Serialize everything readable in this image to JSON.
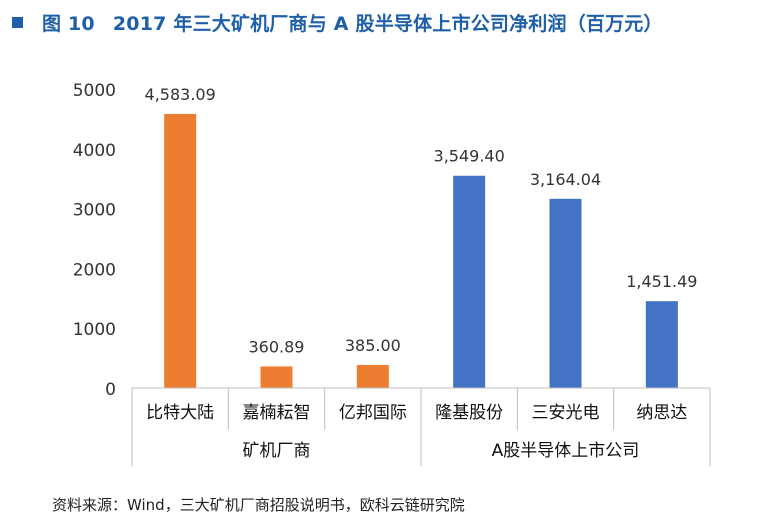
{
  "figure": {
    "label": "图 10",
    "title": "2017 年三大矿机厂商与 A 股半导体上市公司净利润（百万元）"
  },
  "source": "资料来源：Wind，三大矿机厂商招股说明书，欧科云链研究院",
  "colors": {
    "title": "#1f5fa8",
    "miner": "#ed7d31",
    "semiconductor": "#4472c4",
    "axis": "#bfbfbf",
    "text": "#333333"
  },
  "chart_data": {
    "type": "bar",
    "title": "2017 年三大矿机厂商与 A 股半导体上市公司净利润（百万元）",
    "ylabel": "百万元",
    "xlabel": "",
    "ylim": [
      0,
      5000
    ],
    "yticks": [
      0,
      1000,
      2000,
      3000,
      4000,
      5000
    ],
    "grid": false,
    "categories": [
      "比特大陆",
      "嘉楠耘智",
      "亿邦国际",
      "隆基股份",
      "三安光电",
      "纳思达"
    ],
    "values": [
      4583.09,
      360.89,
      385.0,
      3549.4,
      3164.04,
      1451.49
    ],
    "value_labels": [
      "4,583.09",
      "360.89",
      "385.00",
      "3,549.40",
      "3,164.04",
      "1,451.49"
    ],
    "groups": [
      {
        "name": "矿机厂商",
        "indices": [
          0,
          1,
          2
        ],
        "color": "#ed7d31"
      },
      {
        "name": "A股半导体上市公司",
        "indices": [
          3,
          4,
          5
        ],
        "color": "#4472c4"
      }
    ]
  }
}
